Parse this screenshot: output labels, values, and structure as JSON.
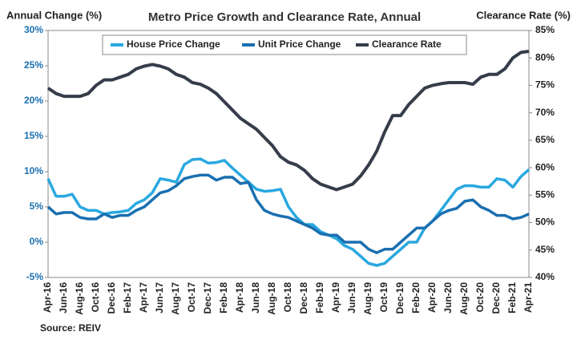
{
  "chart_data": {
    "type": "line",
    "title": "Metro Price Growth and Clearance Rate, Annual",
    "y_label": "Annual Change (%)",
    "y2_label": "Clearance Rate (%)",
    "source": "Source: REIV",
    "categories": [
      "Apr-16",
      null,
      "Jun-16",
      null,
      "Aug-16",
      null,
      "Oct-16",
      null,
      "Dec-16",
      null,
      "Feb-17",
      null,
      "Apr-17",
      null,
      "Jun-17",
      null,
      "Aug-17",
      null,
      "Oct-17",
      null,
      "Dec-17",
      null,
      "Feb-18",
      null,
      "Apr-18",
      null,
      "Jun-18",
      null,
      "Aug-18",
      null,
      "Oct-18",
      null,
      "Dec-18",
      null,
      "Feb-19",
      null,
      "Apr-19",
      null,
      "Jun-19",
      null,
      "Aug-19",
      null,
      "Oct-19",
      null,
      "Dec-19",
      null,
      "Feb-20",
      null,
      "Apr-20",
      null,
      "Jun-20",
      null,
      "Aug-20",
      null,
      "Oct-20",
      null,
      "Dec-20",
      null,
      "Feb-21",
      null,
      "Apr-21"
    ],
    "series": [
      {
        "name": "House Price Change",
        "color": "#29a8e0",
        "values": [
          9.0,
          6.5,
          6.5,
          6.8,
          5.0,
          4.5,
          4.5,
          4.0,
          4.2,
          4.3,
          4.5,
          5.5,
          6.0,
          7.0,
          9.0,
          8.8,
          8.5,
          11.0,
          11.7,
          11.8,
          11.2,
          11.3,
          11.6,
          10.5,
          9.5,
          8.5,
          7.5,
          7.2,
          7.3,
          7.5,
          5.0,
          3.5,
          2.5,
          2.5,
          1.5,
          1.0,
          0.5,
          -0.5,
          -1.0,
          -2.0,
          -3.0,
          -3.3,
          -3.0,
          -2.0,
          -1.0,
          0.0,
          0.0,
          2.0,
          3.0,
          4.5,
          6.0,
          7.5,
          8.0,
          8.0,
          7.8,
          7.8,
          9.0,
          8.8,
          7.8,
          9.3,
          10.3
        ]
      },
      {
        "name": "Unit Price Change",
        "color": "#1a6fb0",
        "values": [
          5.0,
          4.0,
          4.2,
          4.2,
          3.5,
          3.3,
          3.3,
          4.0,
          3.5,
          3.8,
          3.8,
          4.5,
          5.0,
          6.0,
          7.0,
          7.3,
          8.0,
          9.0,
          9.3,
          9.5,
          9.5,
          8.8,
          9.2,
          9.2,
          8.3,
          8.5,
          6.0,
          4.5,
          4.0,
          3.7,
          3.5,
          3.0,
          2.5,
          2.0,
          1.2,
          1.0,
          1.0,
          0.0,
          0.0,
          0.0,
          -1.0,
          -1.5,
          -1.0,
          -1.0,
          0.0,
          1.0,
          2.0,
          2.0,
          3.0,
          4.0,
          4.5,
          4.8,
          5.8,
          6.0,
          5.0,
          4.5,
          3.8,
          3.8,
          3.3,
          3.5,
          4.0
        ]
      },
      {
        "name": "Clearance Rate",
        "color": "#363d4a",
        "axis": "y2",
        "values": [
          74.5,
          73.5,
          73,
          73,
          73,
          73.5,
          75,
          76,
          76,
          76.5,
          77,
          78,
          78.5,
          78.8,
          78.5,
          78,
          77,
          76.5,
          75.5,
          75.2,
          74.5,
          73.5,
          72,
          70.5,
          69,
          68,
          67,
          65.5,
          64,
          62,
          61,
          60.5,
          59.5,
          58,
          57,
          56.5,
          56,
          56.5,
          57,
          58.5,
          60.5,
          63,
          66.5,
          69.5,
          69.5,
          71.5,
          73,
          74.5,
          75,
          75.3,
          75.5,
          75.5,
          75.5,
          75.2,
          76.5,
          77,
          77,
          78,
          80,
          81,
          81.2
        ]
      }
    ],
    "ylim": [
      -5,
      30
    ],
    "yticks": [
      {
        "value": -5,
        "label": "-5%"
      },
      {
        "value": 0,
        "label": "0%"
      },
      {
        "value": 5,
        "label": "5%"
      },
      {
        "value": 10,
        "label": "10%"
      },
      {
        "value": 15,
        "label": "15%"
      },
      {
        "value": 20,
        "label": "20%"
      },
      {
        "value": 25,
        "label": "25%"
      },
      {
        "value": 30,
        "label": "30%"
      }
    ],
    "y2lim": [
      40,
      85
    ],
    "y2ticks": [
      {
        "value": 40,
        "label": "40%"
      },
      {
        "value": 45,
        "label": "45%"
      },
      {
        "value": 50,
        "label": "50%"
      },
      {
        "value": 55,
        "label": "55%"
      },
      {
        "value": 60,
        "label": "60%"
      },
      {
        "value": 65,
        "label": "65%"
      },
      {
        "value": 70,
        "label": "70%"
      },
      {
        "value": 75,
        "label": "75%"
      },
      {
        "value": 80,
        "label": "80%"
      },
      {
        "value": 85,
        "label": "85%"
      }
    ],
    "grid": false,
    "legend": "top"
  }
}
